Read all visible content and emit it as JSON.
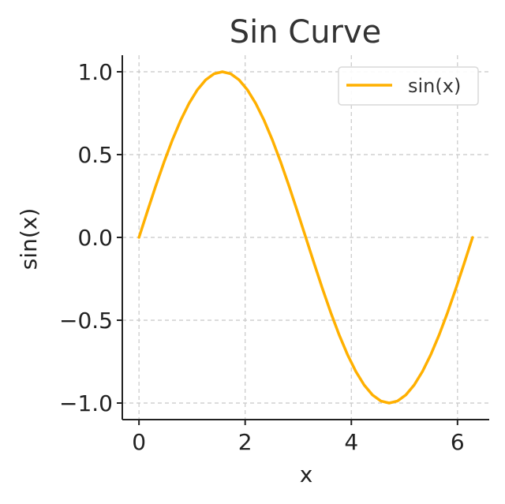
{
  "chart_data": {
    "type": "line",
    "title": "Sin Curve",
    "xlabel": "x",
    "ylabel": "sin(x)",
    "xlim": [
      -0.3142,
      6.5973
    ],
    "ylim": [
      -1.1,
      1.1
    ],
    "xticks": [
      0,
      2,
      4,
      6
    ],
    "xtick_labels": [
      "0",
      "2",
      "4",
      "6"
    ],
    "yticks": [
      -1.0,
      -0.5,
      0.0,
      0.5,
      1.0
    ],
    "ytick_labels": [
      "−1.0",
      "−0.5",
      "0.0",
      "0.5",
      "1.0"
    ],
    "grid": true,
    "legend_position": "top-right",
    "series": [
      {
        "name": "sin(x)",
        "color": "#FFB000",
        "x": [
          0.0,
          0.1571,
          0.3142,
          0.4712,
          0.6283,
          0.7854,
          0.9425,
          1.0996,
          1.2566,
          1.4137,
          1.5708,
          1.7279,
          1.885,
          2.042,
          2.1991,
          2.3562,
          2.5133,
          2.6704,
          2.8274,
          2.9845,
          3.1416,
          3.2987,
          3.4558,
          3.6128,
          3.7699,
          3.927,
          4.0841,
          4.2412,
          4.3982,
          4.5553,
          4.7124,
          4.8695,
          5.0265,
          5.1836,
          5.3407,
          5.4978,
          5.6549,
          5.8119,
          5.969,
          6.1261,
          6.2832
        ],
        "y": [
          0.0,
          0.1564,
          0.309,
          0.454,
          0.5878,
          0.7071,
          0.809,
          0.891,
          0.9511,
          0.9877,
          1.0,
          0.9877,
          0.9511,
          0.891,
          0.809,
          0.7071,
          0.5878,
          0.454,
          0.309,
          0.1564,
          0.0,
          -0.1564,
          -0.309,
          -0.454,
          -0.5878,
          -0.7071,
          -0.809,
          -0.891,
          -0.9511,
          -0.9877,
          -1.0,
          -0.9877,
          -0.9511,
          -0.891,
          -0.809,
          -0.7071,
          -0.5878,
          -0.454,
          -0.309,
          -0.1564,
          0.0
        ]
      }
    ]
  }
}
